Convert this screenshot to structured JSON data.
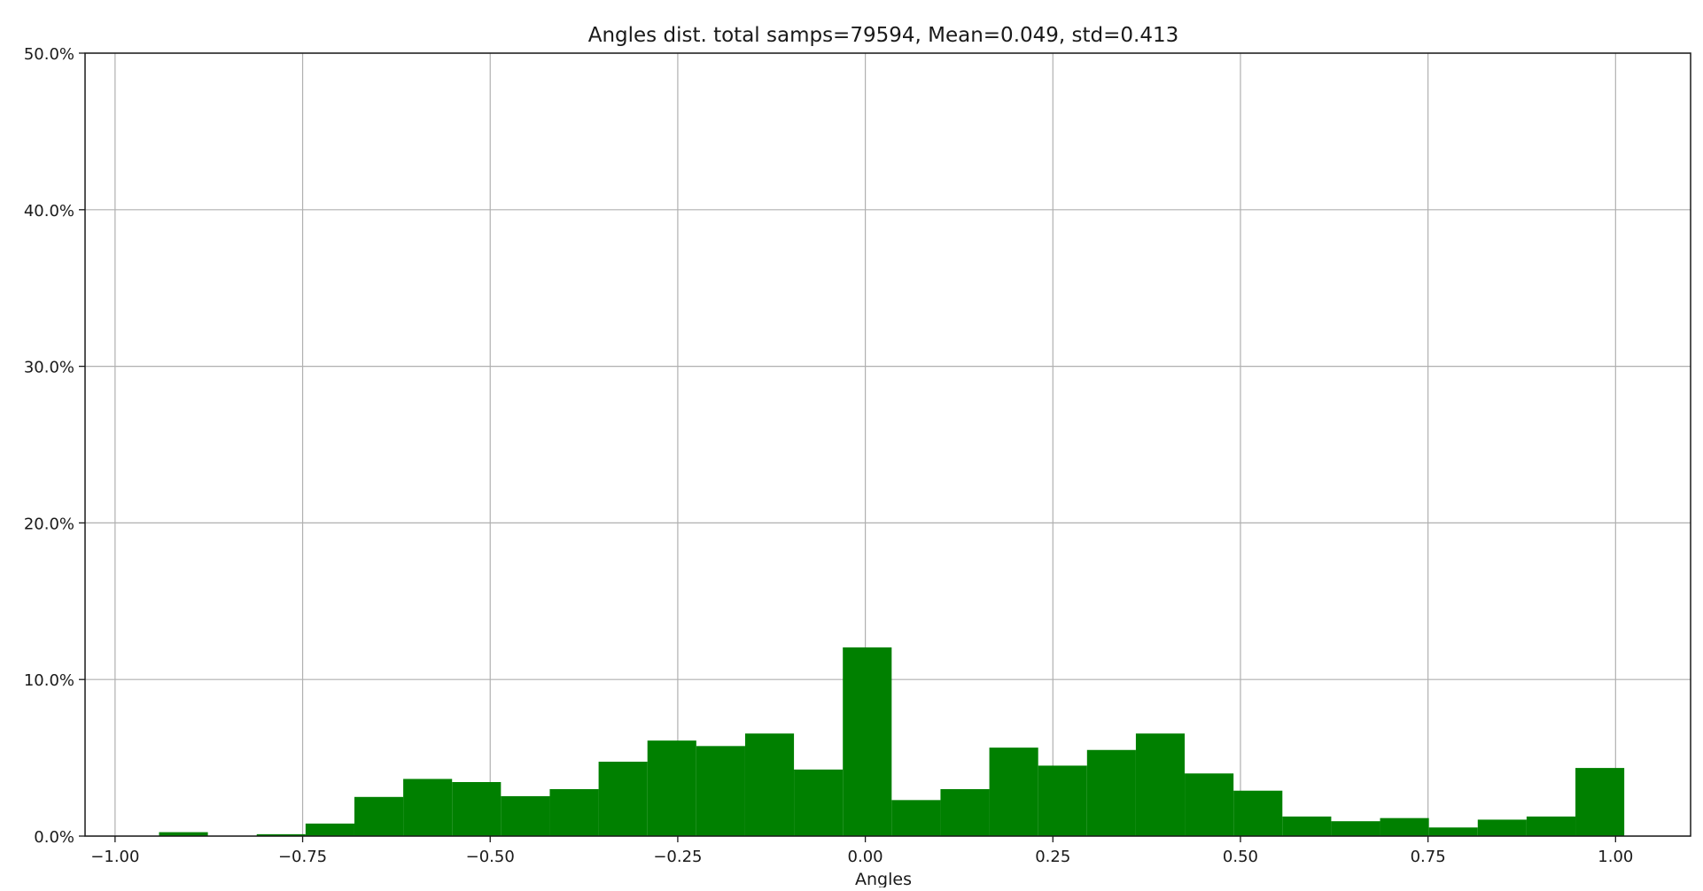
{
  "chart_data": {
    "type": "bar",
    "title": "Angles dist. total samps=79594, Mean=0.049, std=0.413",
    "xlabel": "Angles",
    "ylabel": "",
    "xlim": [
      -1.04,
      1.1
    ],
    "ylim": [
      0,
      50
    ],
    "x_ticks": [
      -1.0,
      -0.75,
      -0.5,
      -0.25,
      0.0,
      0.25,
      0.5,
      0.75,
      1.0
    ],
    "x_tick_labels": [
      "−1.00",
      "−0.75",
      "−0.50",
      "−0.25",
      "0.00",
      "0.25",
      "0.50",
      "0.75",
      "1.00"
    ],
    "y_ticks": [
      0,
      10,
      20,
      30,
      40,
      50
    ],
    "y_tick_labels": [
      "0.0%",
      "10.0%",
      "20.0%",
      "30.0%",
      "40.0%",
      "50.0%"
    ],
    "grid": true,
    "bar_color": "#008000",
    "bin_edges": [
      -0.9414,
      -0.8763,
      -0.8112,
      -0.7461,
      -0.681,
      -0.6159,
      -0.5508,
      -0.4857,
      -0.4206,
      -0.3555,
      -0.2904,
      -0.2253,
      -0.1602,
      -0.0951,
      -0.03,
      0.0351,
      0.1002,
      0.1653,
      0.2304,
      0.2955,
      0.3606,
      0.4257,
      0.4908,
      0.5559,
      0.621,
      0.6861,
      0.7512,
      0.8163,
      0.8814,
      0.9465,
      1.0116
    ],
    "values": [
      0.25,
      0.0,
      0.12,
      0.8,
      2.5,
      3.65,
      3.45,
      2.55,
      3.0,
      4.75,
      6.1,
      5.75,
      6.55,
      4.25,
      12.05,
      2.3,
      3.0,
      5.65,
      4.5,
      5.5,
      6.55,
      4.0,
      2.9,
      1.25,
      0.95,
      1.15,
      0.55,
      1.05,
      1.25,
      4.35
    ]
  }
}
